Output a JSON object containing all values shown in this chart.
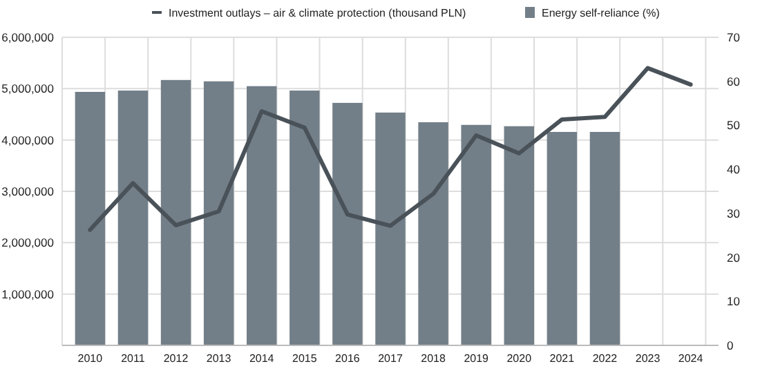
{
  "chart_data": {
    "type": "bar",
    "categories": [
      "2010",
      "2011",
      "2012",
      "2013",
      "2014",
      "2015",
      "2016",
      "2017",
      "2018",
      "2019",
      "2020",
      "2021",
      "2022",
      "2023",
      "2024"
    ],
    "series": [
      {
        "name": "Investment outlays – air & climate protection (thousand PLN)",
        "type": "line",
        "color": "#4a5259",
        "values": [
          2250000,
          3160000,
          2340000,
          2610000,
          4560000,
          4240000,
          2550000,
          2330000,
          2950000,
          4090000,
          3740000,
          4400000,
          4450000,
          5400000,
          5080000
        ]
      },
      {
        "name": "Energy self-reliance (%)",
        "axis": "y2",
        "color": "#737f88",
        "values": [
          57.6,
          57.9,
          60.3,
          60.0,
          58.9,
          57.9,
          55.1,
          52.9,
          50.7,
          50.1,
          49.8,
          48.5,
          48.5,
          null,
          null
        ]
      }
    ],
    "ylim": [
      0,
      6000000
    ],
    "yticks": [
      {
        "value": 0,
        "label": null
      },
      {
        "value": 1000000,
        "label": "1,000,000"
      },
      {
        "value": 2000000,
        "label": "2,000,000"
      },
      {
        "value": 3000000,
        "label": "3,000,000"
      },
      {
        "value": 4000000,
        "label": "4,000,000"
      },
      {
        "value": 5000000,
        "label": "5,000,000"
      },
      {
        "value": 6000000,
        "label": "6,000,000"
      }
    ],
    "y2lim": [
      0,
      70
    ],
    "y2ticks": [
      0,
      10,
      20,
      30,
      40,
      50,
      60,
      70
    ],
    "grid": true,
    "legend": "top"
  }
}
